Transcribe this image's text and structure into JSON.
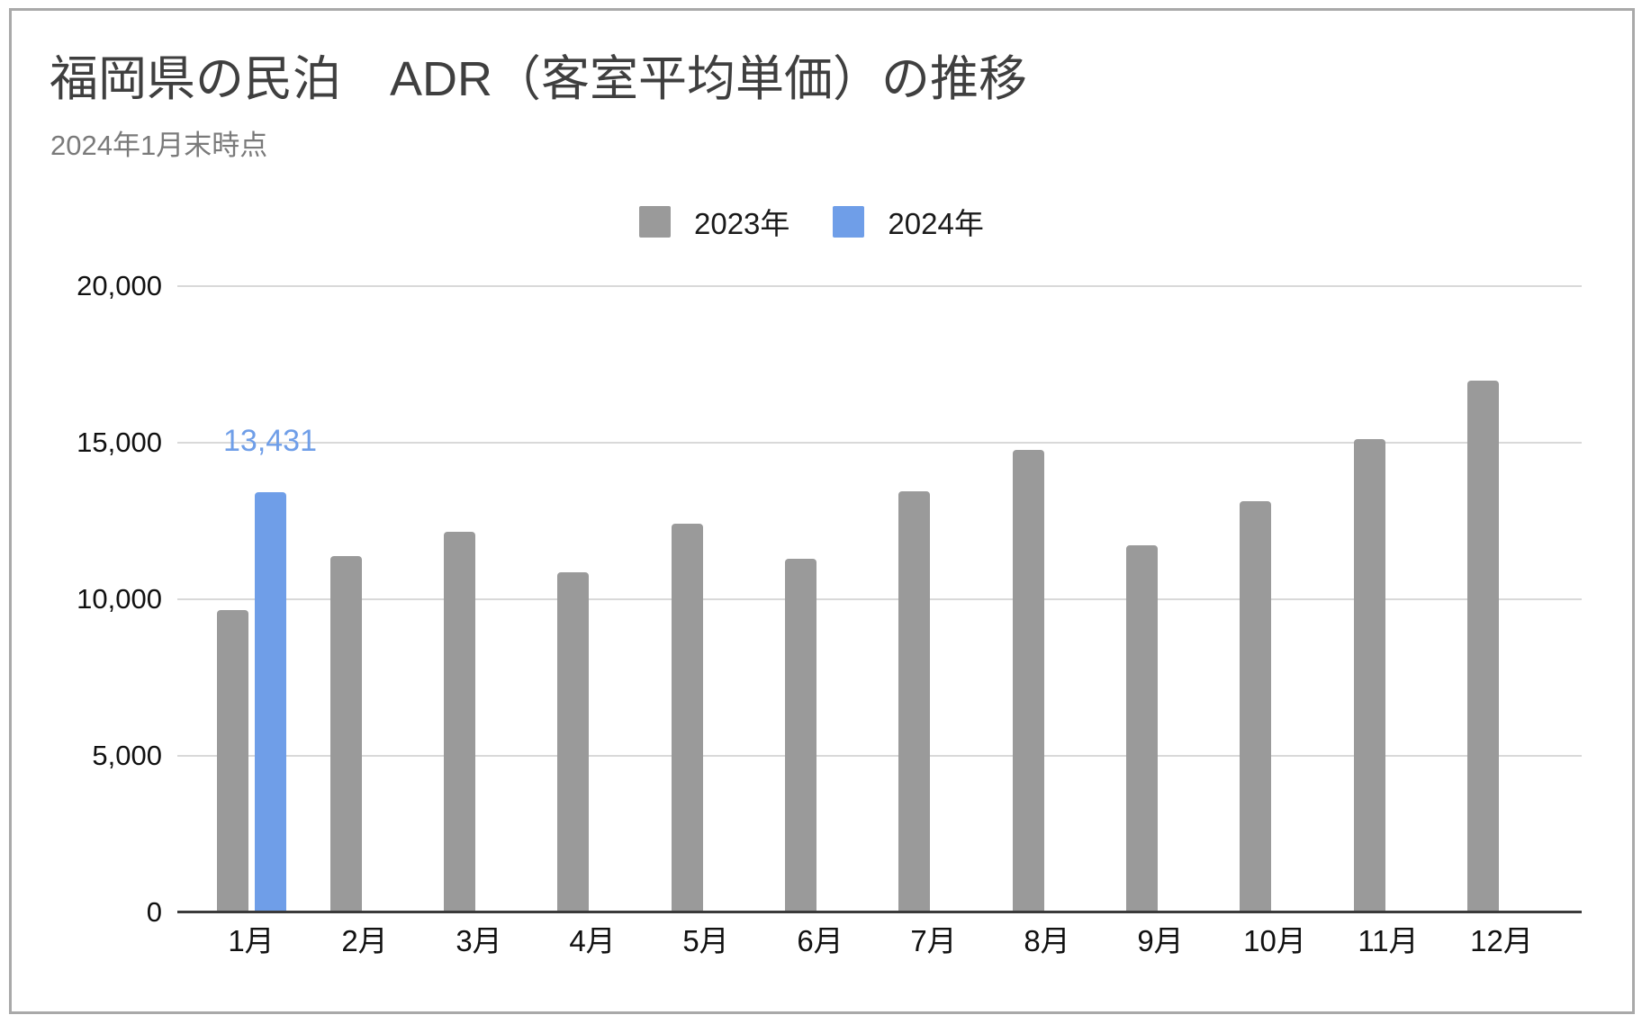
{
  "card": {
    "border_color": "#a9a9a9",
    "background": "#ffffff"
  },
  "chart_data": {
    "type": "bar",
    "title": "福岡県の民泊　ADR（客室平均単価）の推移",
    "subtitle": "2024年1月末時点",
    "categories": [
      "1月",
      "2月",
      "3月",
      "4月",
      "5月",
      "6月",
      "7月",
      "8月",
      "9月",
      "10月",
      "11月",
      "12月"
    ],
    "series": [
      {
        "name": "2023年",
        "color": "#9a9a9a",
        "values": [
          9650,
          11380,
          12150,
          10860,
          12410,
          11290,
          13450,
          14770,
          11720,
          13130,
          15110,
          16980
        ]
      },
      {
        "name": "2024年",
        "color": "#6f9ee8",
        "values": [
          13431,
          null,
          null,
          null,
          null,
          null,
          null,
          null,
          null,
          null,
          null,
          null
        ]
      }
    ],
    "annotations": [
      {
        "series": "2024年",
        "category": "1月",
        "text": "13,431",
        "color": "#6f9ee8"
      }
    ],
    "xlabel": "",
    "ylabel": "",
    "y_axis": {
      "tick_labels": [
        "0",
        "5,000",
        "10,000",
        "15,000",
        "20,000"
      ],
      "tick_values": [
        0,
        5000,
        10000,
        15000,
        20000
      ],
      "min": 0,
      "max": 20000,
      "grid": true,
      "gridline_color": "#d9d9d9",
      "axis_line_color": "#3a3a3a",
      "tick_color": "#111111"
    },
    "legend_position": "top"
  }
}
